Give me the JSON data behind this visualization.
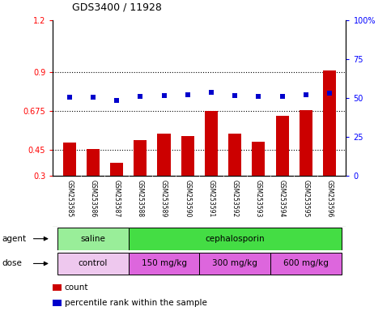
{
  "title": "GDS3400 / 11928",
  "samples": [
    "GSM253585",
    "GSM253586",
    "GSM253587",
    "GSM253588",
    "GSM253589",
    "GSM253590",
    "GSM253591",
    "GSM253592",
    "GSM253593",
    "GSM253594",
    "GSM253595",
    "GSM253596"
  ],
  "counts": [
    0.49,
    0.455,
    0.375,
    0.505,
    0.545,
    0.53,
    0.675,
    0.545,
    0.495,
    0.645,
    0.68,
    0.91
  ],
  "pct_right": [
    50.5,
    50.3,
    48.5,
    51.0,
    51.8,
    52.0,
    53.5,
    51.8,
    50.8,
    51.0,
    52.0,
    53.0
  ],
  "ylim_left": [
    0.3,
    1.2
  ],
  "ylim_right": [
    0,
    100
  ],
  "yticks_left": [
    0.3,
    0.45,
    0.675,
    0.9,
    1.2
  ],
  "yticks_right": [
    0,
    25,
    50,
    75,
    100
  ],
  "ytick_labels_left": [
    "0.3",
    "0.45",
    "0.675",
    "0.9",
    "1.2"
  ],
  "ytick_labels_right": [
    "0",
    "25",
    "50",
    "75",
    "100%"
  ],
  "hlines": [
    0.45,
    0.675,
    0.9
  ],
  "bar_color": "#cc0000",
  "dot_color": "#0000cc",
  "agent_groups": [
    {
      "label": "saline",
      "start": 0,
      "end": 3,
      "color": "#99ee99"
    },
    {
      "label": "cephalosporin",
      "start": 3,
      "end": 12,
      "color": "#44dd44"
    }
  ],
  "dose_groups": [
    {
      "label": "control",
      "start": 0,
      "end": 3,
      "color": "#eec8ee"
    },
    {
      "label": "150 mg/kg",
      "start": 3,
      "end": 6,
      "color": "#dd66dd"
    },
    {
      "label": "300 mg/kg",
      "start": 6,
      "end": 9,
      "color": "#dd66dd"
    },
    {
      "label": "600 mg/kg",
      "start": 9,
      "end": 12,
      "color": "#dd66dd"
    }
  ],
  "legend_count": "count",
  "legend_pct": "percentile rank within the sample",
  "bar_color_legend": "#cc0000",
  "dot_color_legend": "#0000cc"
}
